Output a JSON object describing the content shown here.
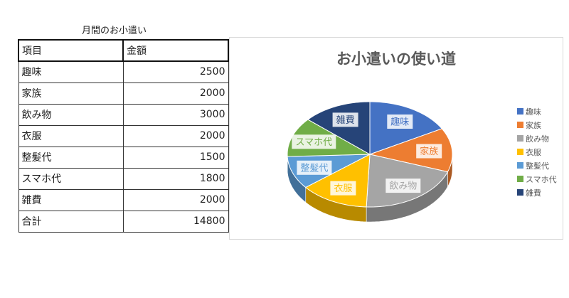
{
  "sheet_title": "月間のお小遣い",
  "table": {
    "headers": [
      "項目",
      "金額"
    ],
    "rows": [
      {
        "item": "趣味",
        "amount": "2500"
      },
      {
        "item": "家族",
        "amount": "2000"
      },
      {
        "item": "飲み物",
        "amount": "3000"
      },
      {
        "item": "衣服",
        "amount": "2000"
      },
      {
        "item": "整髪代",
        "amount": "1500"
      },
      {
        "item": "スマホ代",
        "amount": "1800"
      },
      {
        "item": "雑費",
        "amount": "2000"
      }
    ],
    "total": {
      "item": "合計",
      "amount": "14800"
    }
  },
  "chart_data": {
    "type": "pie",
    "title": "お小遣いの使い道",
    "categories": [
      "趣味",
      "家族",
      "飲み物",
      "衣服",
      "整髪代",
      "スマホ代",
      "雑費"
    ],
    "values": [
      2500,
      2000,
      3000,
      2000,
      1500,
      1800,
      2000
    ],
    "colors": [
      "#4472C4",
      "#ED7D31",
      "#A5A5A5",
      "#FFC000",
      "#5B9BD5",
      "#70AD47",
      "#264478"
    ],
    "legend_position": "right",
    "style": "3d-pie"
  }
}
